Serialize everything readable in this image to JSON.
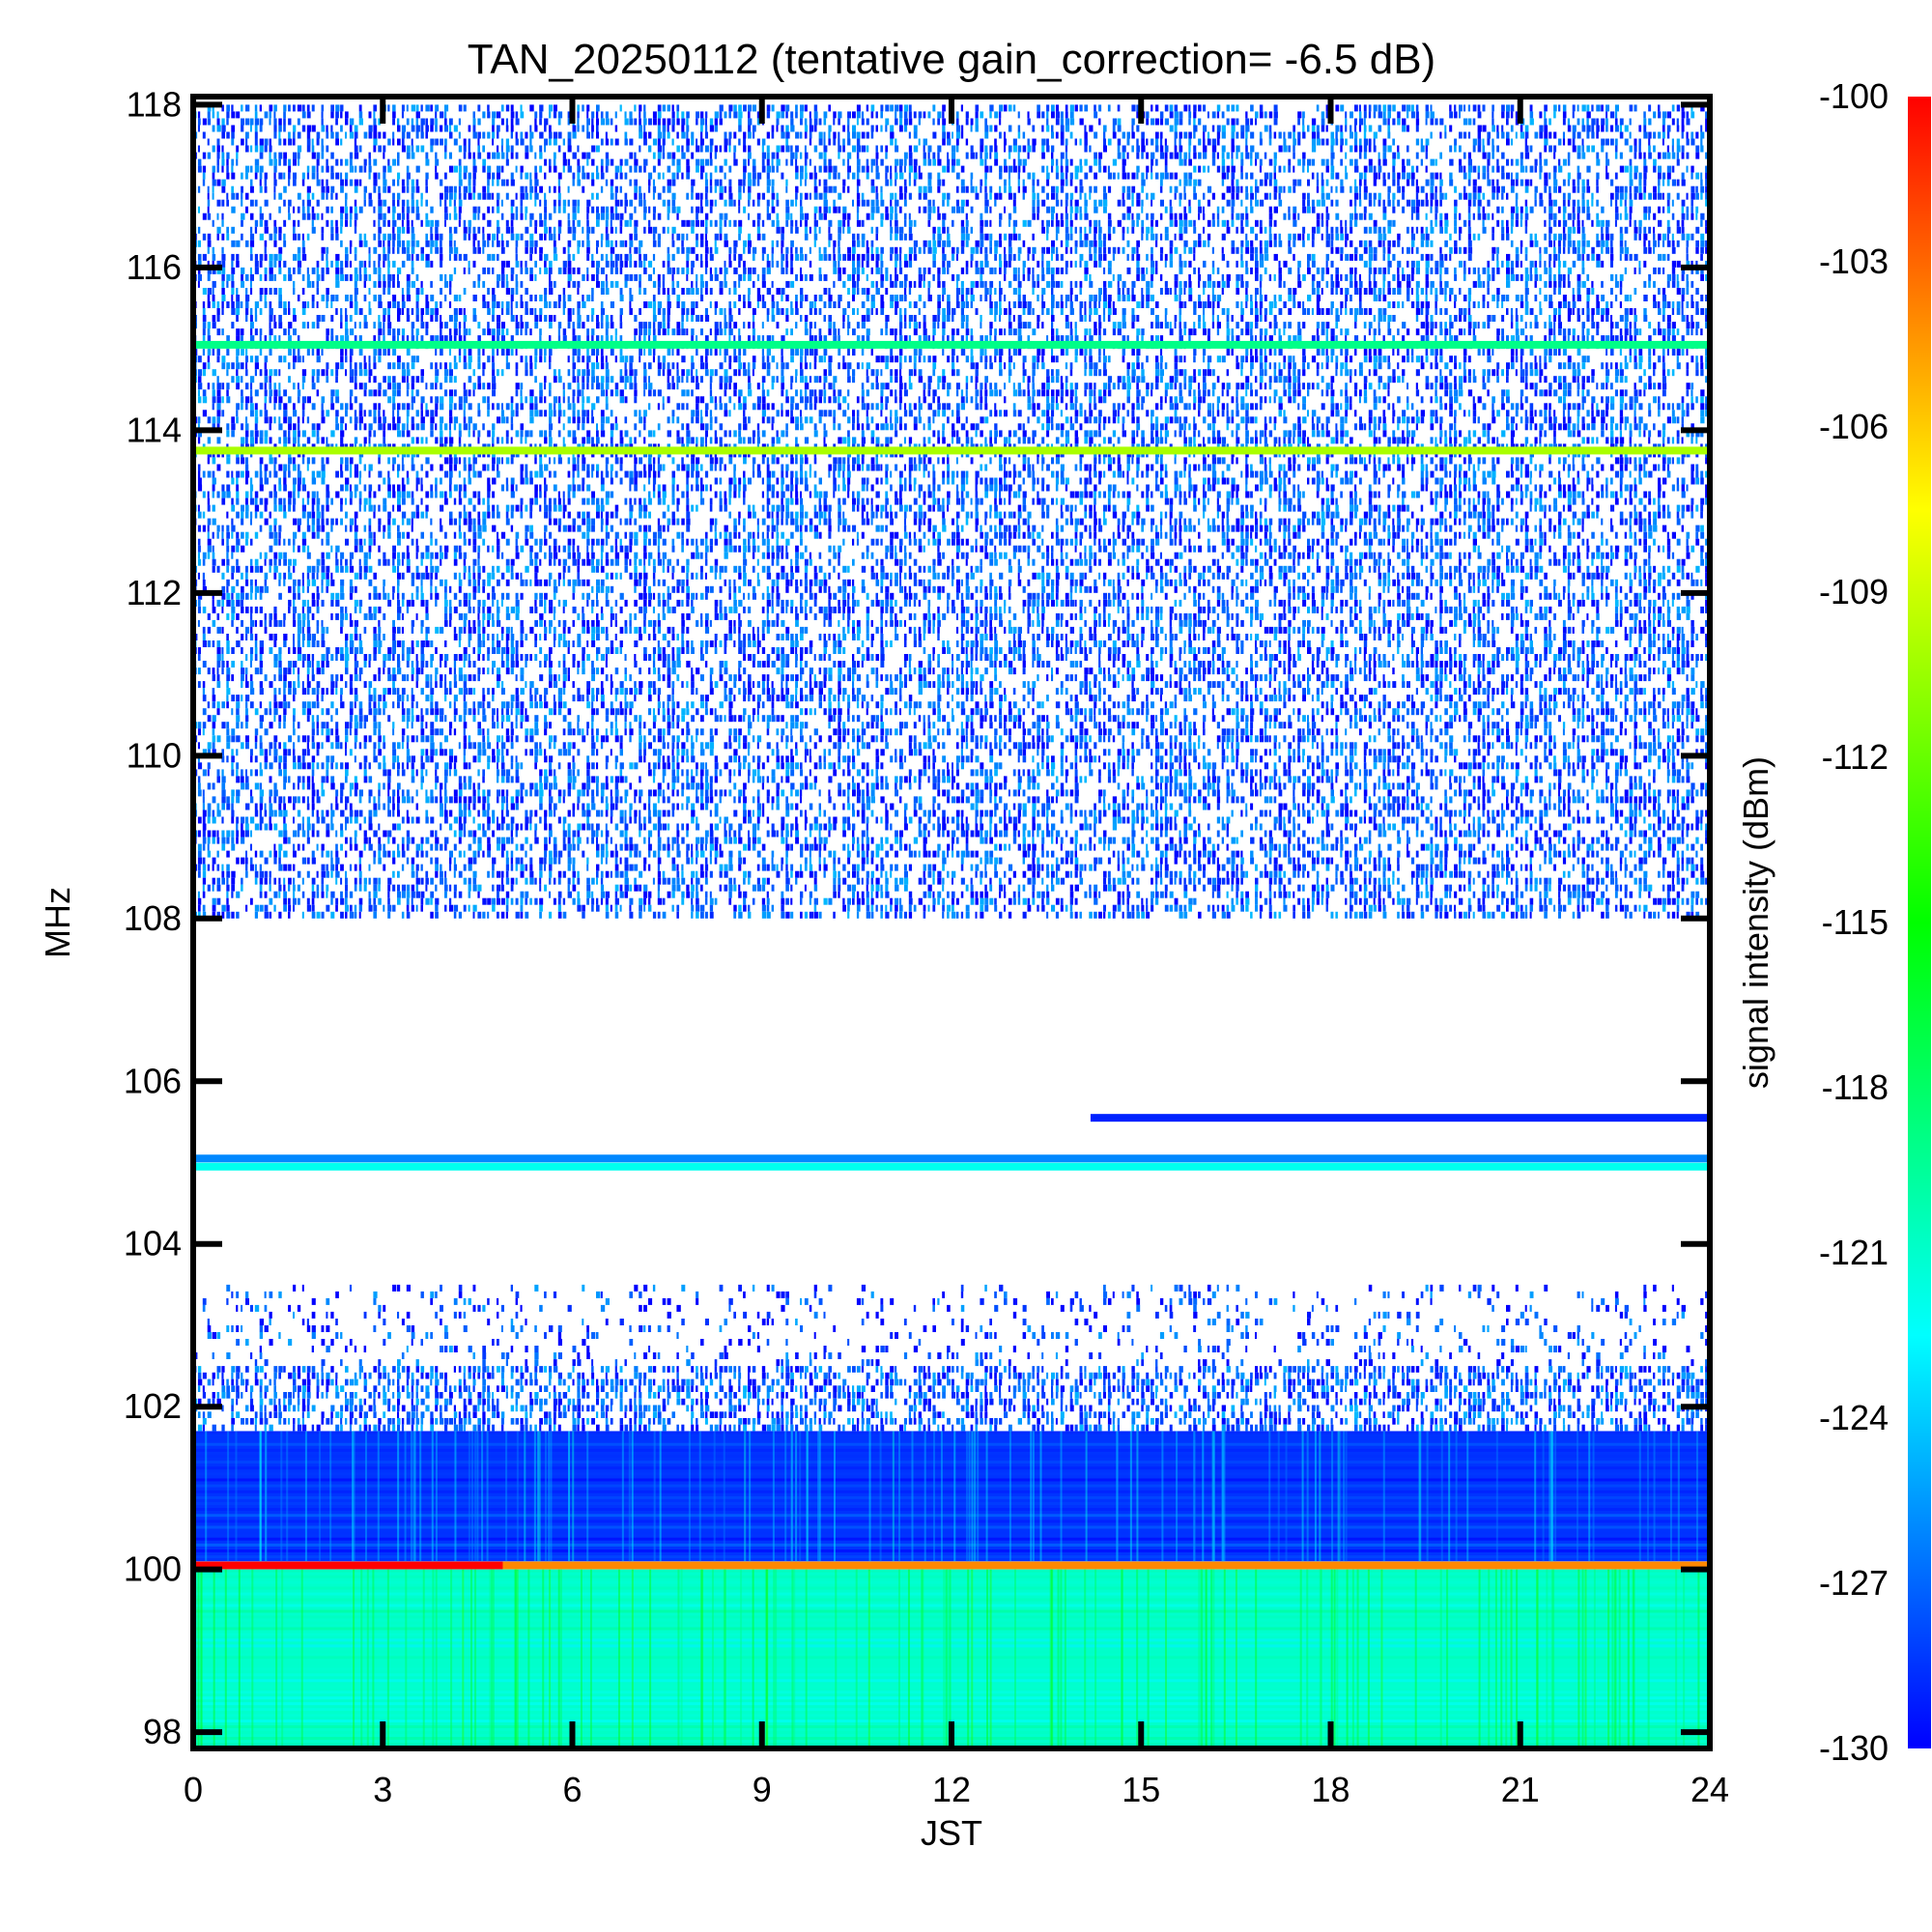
{
  "chart_data": {
    "type": "heatmap",
    "title": "TAN_20250112 (tentative gain_correction= -6.5 dB)",
    "xlabel": "JST",
    "ylabel": "MHz",
    "colorbar_label": "signal intensity (dBm)",
    "xlim": [
      0,
      24
    ],
    "ylim": [
      97.8,
      118.1
    ],
    "clim": [
      -130,
      -100
    ],
    "x_ticks": [
      0,
      3,
      6,
      9,
      12,
      15,
      18,
      21,
      24
    ],
    "y_ticks": [
      98,
      100,
      102,
      104,
      106,
      108,
      110,
      112,
      114,
      116,
      118
    ],
    "colorbar_ticks": [
      -100,
      -103,
      -106,
      -109,
      -112,
      -115,
      -118,
      -121,
      -124,
      -127,
      -130
    ],
    "colormap": [
      "#0000ff",
      "#0080ff",
      "#00ffff",
      "#00ff80",
      "#00ff00",
      "#80ff00",
      "#ffff00",
      "#ff8000",
      "#ff0000"
    ],
    "regions": [
      {
        "f_min": 108.0,
        "f_max": 118.0,
        "description": "dense weak noise",
        "level_dbm": -128.5,
        "coverage": 0.55
      },
      {
        "f_min": 102.5,
        "f_max": 103.5,
        "description": "sparse weak noise",
        "level_dbm": -129,
        "coverage": 0.18
      },
      {
        "f_min": 101.7,
        "f_max": 102.5,
        "description": "medium weak noise",
        "level_dbm": -128.5,
        "coverage": 0.6
      },
      {
        "f_min": 100.1,
        "f_max": 101.7,
        "description": "continuous band",
        "level_dbm": -128.5,
        "coverage": 1.0
      },
      {
        "f_min": 97.8,
        "f_max": 100.0,
        "description": "continuous strong band",
        "level_dbm": -121,
        "coverage": 1.0
      }
    ],
    "lines": [
      {
        "freq_mhz": 115.05,
        "level_dbm": -119,
        "t_start": 0,
        "t_end": 24
      },
      {
        "freq_mhz": 113.75,
        "level_dbm": -110,
        "t_start": 0,
        "t_end": 24
      },
      {
        "freq_mhz": 105.05,
        "level_dbm": -126,
        "t_start": 0,
        "t_end": 24
      },
      {
        "freq_mhz": 104.95,
        "level_dbm": -122,
        "t_start": 0,
        "t_end": 24
      },
      {
        "freq_mhz": 105.55,
        "level_dbm": -129,
        "t_start": 14.2,
        "t_end": 24
      },
      {
        "freq_mhz": 100.05,
        "level_dbm": -100,
        "t_start": 0,
        "t_end": 4.9
      },
      {
        "freq_mhz": 100.05,
        "level_dbm": -104,
        "t_start": 4.9,
        "t_end": 24
      }
    ]
  }
}
